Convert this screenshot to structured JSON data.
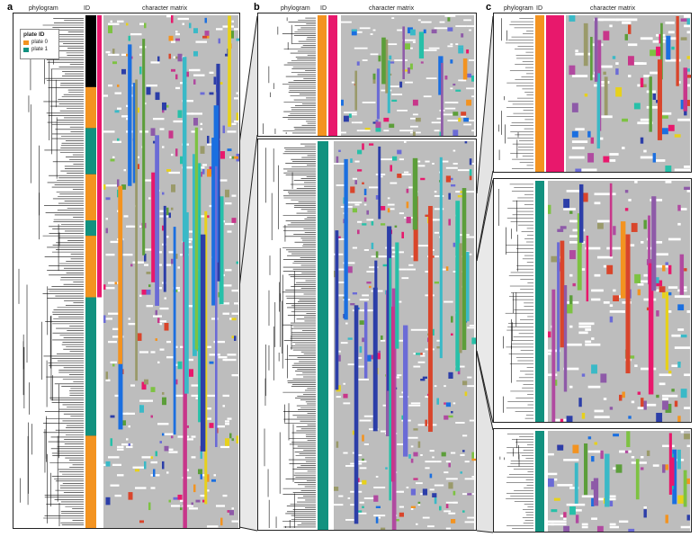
{
  "panels": [
    {
      "letter": "a",
      "headers": {
        "phylogram": "phylogram",
        "id": "ID",
        "matrix": "character matrix"
      }
    },
    {
      "letter": "b",
      "headers": {
        "phylogram": "phylogram",
        "id": "ID",
        "matrix": "character matrix"
      }
    },
    {
      "letter": "c",
      "headers": {
        "phylogram": "phylogram",
        "id": "ID",
        "matrix": "character matrix"
      }
    }
  ],
  "legend": {
    "title": "plate ID",
    "items": [
      {
        "label": "plate 0",
        "color": "#f39320"
      },
      {
        "label": "plate 1",
        "color": "#12917f"
      }
    ]
  },
  "colors": {
    "plate0": "#f39320",
    "plate1": "#12917f",
    "id_column_black": "#000000",
    "accent_pink": "#e8186c",
    "matrix_background": "#bdbdbd"
  }
}
